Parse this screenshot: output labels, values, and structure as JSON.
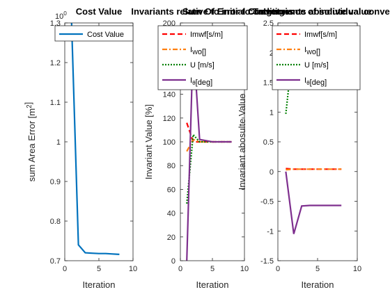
{
  "chart_data": [
    {
      "type": "line",
      "title": "Cost Value",
      "xlabel": "Iteration",
      "ylabel": "sum Area Error [m^2]",
      "exponent_label": "10^0",
      "xlim": [
        0,
        10
      ],
      "ylim": [
        0.7,
        1.3
      ],
      "xticks": [
        "0",
        "5",
        "10"
      ],
      "yticks": [
        "0.7",
        "0.8",
        "0.9",
        "1",
        "1.1",
        "1.2",
        "1.3"
      ],
      "grid": false,
      "legend_position": "top-right",
      "series": [
        {
          "name": "Cost Value",
          "color": "#0072bd",
          "style": "solid",
          "x": [
            1,
            2,
            3,
            4,
            5,
            6,
            7,
            8
          ],
          "y": [
            1.3,
            0.74,
            0.72,
            0.719,
            0.718,
            0.718,
            0.717,
            0.716
          ]
        }
      ]
    },
    {
      "type": "line",
      "title": "Invariants relative to initial conditions",
      "xlabel": "Iteration",
      "ylabel": "Invariant Value [%]",
      "xlim": [
        0,
        10
      ],
      "ylim": [
        0,
        200
      ],
      "xticks": [
        "0",
        "5",
        "10"
      ],
      "yticks": [
        "0",
        "20",
        "40",
        "60",
        "80",
        "100",
        "120",
        "140",
        "160",
        "180",
        "200"
      ],
      "grid": false,
      "legend_position": "top-right",
      "series": [
        {
          "name": "Imwf[s/m]",
          "color": "#ff0000",
          "style": "dashed",
          "x": [
            1,
            2,
            3,
            4,
            5,
            6,
            7,
            8
          ],
          "y": [
            116,
            100,
            100,
            100,
            100,
            100,
            100,
            100
          ]
        },
        {
          "name": "I_Wo[]",
          "color": "#ff7f0e",
          "style": "dashdot",
          "x": [
            1,
            2,
            3,
            4,
            5,
            6,
            7,
            8
          ],
          "y": [
            92,
            102,
            100,
            100,
            100,
            100,
            100,
            100
          ]
        },
        {
          "name": "U [m/s]",
          "color": "#008000",
          "style": "dotted",
          "x": [
            1,
            2,
            3,
            4,
            5,
            6,
            7,
            8
          ],
          "y": [
            48,
            106,
            100,
            100,
            100,
            100,
            100,
            100
          ]
        },
        {
          "name": "I_θ[deg]",
          "color": "#7e2f8e",
          "style": "solid",
          "x": [
            1,
            2,
            3,
            4,
            5,
            6,
            7,
            8
          ],
          "y": [
            0,
            185,
            102,
            101,
            100,
            100,
            100,
            100
          ]
        }
      ]
    },
    {
      "type": "line",
      "title": "Invariants absolute value",
      "xlabel": "Iteration",
      "ylabel": "Invariant abosulte Value",
      "xlim": [
        0,
        10
      ],
      "ylim": [
        -1.5,
        2.5
      ],
      "xticks": [
        "0",
        "5",
        "10"
      ],
      "yticks": [
        "-1.5",
        "-1",
        "-0.5",
        "0",
        "0.5",
        "1",
        "1.5",
        "2",
        "2.5"
      ],
      "grid": false,
      "legend_position": "top-right",
      "series": [
        {
          "name": "Imwf[s/m]",
          "color": "#ff0000",
          "style": "dashed",
          "x": [
            1,
            2,
            3,
            4,
            5,
            6,
            7,
            8
          ],
          "y": [
            0.05,
            0.04,
            0.04,
            0.04,
            0.04,
            0.04,
            0.04,
            0.04
          ]
        },
        {
          "name": "I_Wo[]",
          "color": "#ff7f0e",
          "style": "dashdot",
          "x": [
            1,
            2,
            3,
            4,
            5,
            6,
            7,
            8
          ],
          "y": [
            0.03,
            0.04,
            0.04,
            0.04,
            0.04,
            0.04,
            0.04,
            0.04
          ]
        },
        {
          "name": "U [m/s]",
          "color": "#008000",
          "style": "dotted",
          "x": [
            1,
            2,
            3,
            4,
            5,
            6,
            7,
            8
          ],
          "y": [
            0.97,
            2.2,
            2.1,
            2.1,
            2.1,
            2.1,
            2.1,
            2.1
          ]
        },
        {
          "name": "I_θ[deg]",
          "color": "#7e2f8e",
          "style": "solid",
          "x": [
            1,
            2,
            3,
            4,
            5,
            6,
            7,
            8
          ],
          "y": [
            0.0,
            -1.05,
            -0.58,
            -0.57,
            -0.57,
            -0.57,
            -0.57,
            -0.57
          ]
        }
      ]
    }
  ],
  "overlay_titles": [
    "Convergence of individual convergence",
    "Sum Of Error to Target"
  ]
}
